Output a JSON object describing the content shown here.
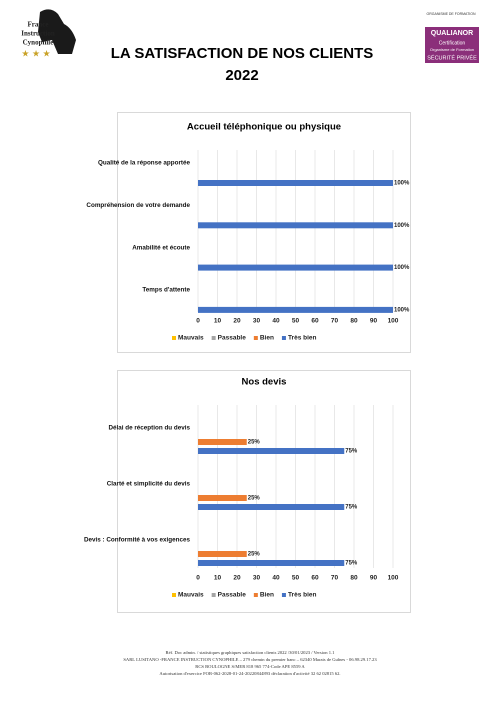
{
  "header": {
    "logo": [
      "France",
      "Instruction",
      "Cynophile"
    ],
    "title": "LA SATISFACTION DE NOS CLIENTS",
    "year": "2022",
    "certifier": {
      "caption": "ORGANISME DE FORMATION",
      "name": "QUALIANOR",
      "line1": "Certification",
      "line2": "Organisme de Formation",
      "line3": "SÉCURITÉ PRIVÉE"
    }
  },
  "chart_data": [
    {
      "type": "bar",
      "orientation": "horizontal",
      "title": "Accueil téléphonique ou physique",
      "categories": [
        "Qualité de la réponse apportée",
        "Compréhension de votre demande",
        "Amabilité et écoute",
        "Temps d'attente"
      ],
      "series": [
        {
          "name": "Mauvais",
          "color": "#ffc000",
          "values": [
            0,
            0,
            0,
            0
          ]
        },
        {
          "name": "Passable",
          "color": "#a5a5a5",
          "values": [
            0,
            0,
            0,
            0
          ]
        },
        {
          "name": "Bien",
          "color": "#ed7d31",
          "values": [
            0,
            0,
            0,
            0
          ]
        },
        {
          "name": "Très bien",
          "color": "#4472c4",
          "values": [
            100,
            100,
            100,
            100
          ],
          "value_labels": [
            "100%",
            "100%",
            "100%",
            "100%"
          ]
        }
      ],
      "xlim": [
        0,
        100
      ],
      "xticks": [
        0,
        10,
        20,
        30,
        40,
        50,
        60,
        70,
        80,
        90,
        100
      ],
      "grid": true,
      "legend": "bottom"
    },
    {
      "type": "bar",
      "orientation": "horizontal",
      "title": "Nos devis",
      "categories": [
        "Délai de réception du devis",
        "Clarté et simplicité du devis",
        "Devis : Conformité à vos exigences"
      ],
      "series": [
        {
          "name": "Mauvais",
          "color": "#ffc000",
          "values": [
            0,
            0,
            0
          ]
        },
        {
          "name": "Passable",
          "color": "#a5a5a5",
          "values": [
            0,
            0,
            0
          ]
        },
        {
          "name": "Bien",
          "color": "#ed7d31",
          "values": [
            25,
            25,
            25
          ],
          "value_labels": [
            "25%",
            "25%",
            "25%"
          ]
        },
        {
          "name": "Très bien",
          "color": "#4472c4",
          "values": [
            75,
            75,
            75
          ],
          "value_labels": [
            "75%",
            "75%",
            "75%"
          ]
        }
      ],
      "xlim": [
        0,
        100
      ],
      "xticks": [
        0,
        10,
        20,
        30,
        40,
        50,
        60,
        70,
        80,
        90,
        100
      ],
      "grid": true,
      "legend": "bottom"
    }
  ],
  "footer": [
    "Réf. Doc admin. / statistiques graphiques satisfaction clients 2022 /30/01/2023 / Version 1.1",
    "SARL LUSITANO -FRANCE INSTRUCTION CYNOPHILE – 279 chemin du premier banc – 62340 Marais de Guînes - 06.98.29.17.23",
    "RCS BOULOGNE S/MER 818 965 774-Code APE 8559 A",
    "Autorisation d'exercice FOR-062-2028-01-24-20220844893 déclaration d'activité 32 62 02815 62."
  ]
}
